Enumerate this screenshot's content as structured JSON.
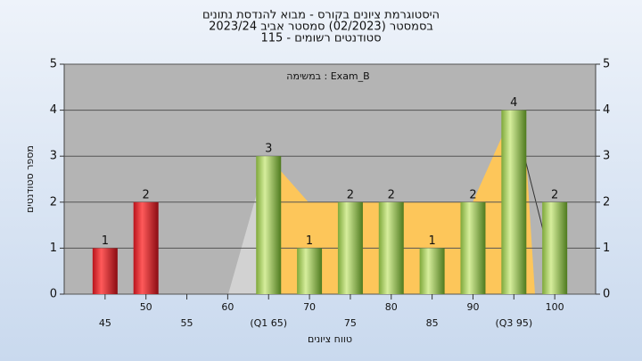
{
  "chart_data": {
    "type": "bar",
    "title": "היסטוגרמת ציונים בקורס - מבוא להנדסת נתונים",
    "subtitle": [
      "בסמסטר  (02/2023)  סמסטר אביב 2023/24",
      "סטודנטים רשומים - 115"
    ],
    "annotation": "במשימה : Exam_B",
    "x_label": "טווח ציונים",
    "y_label": "מספר סטודנטים",
    "categories": [
      "45",
      "50",
      "55",
      "60",
      "(Q1 65)",
      "70",
      "75",
      "80",
      "85",
      "90",
      "(Q3 95)",
      "100"
    ],
    "values": [
      1,
      2,
      0,
      0,
      3,
      1,
      2,
      2,
      1,
      2,
      4,
      2
    ],
    "colors": [
      "red",
      "red",
      "green",
      "green",
      "green",
      "green",
      "green",
      "green",
      "green",
      "green",
      "green",
      "green"
    ],
    "ylim": [
      0,
      5
    ],
    "yticks": [
      0,
      1,
      2,
      3,
      4,
      5
    ],
    "y2lim": [
      0,
      5
    ],
    "y2ticks": [
      0,
      1,
      2,
      3,
      4,
      5
    ],
    "grid": true
  }
}
